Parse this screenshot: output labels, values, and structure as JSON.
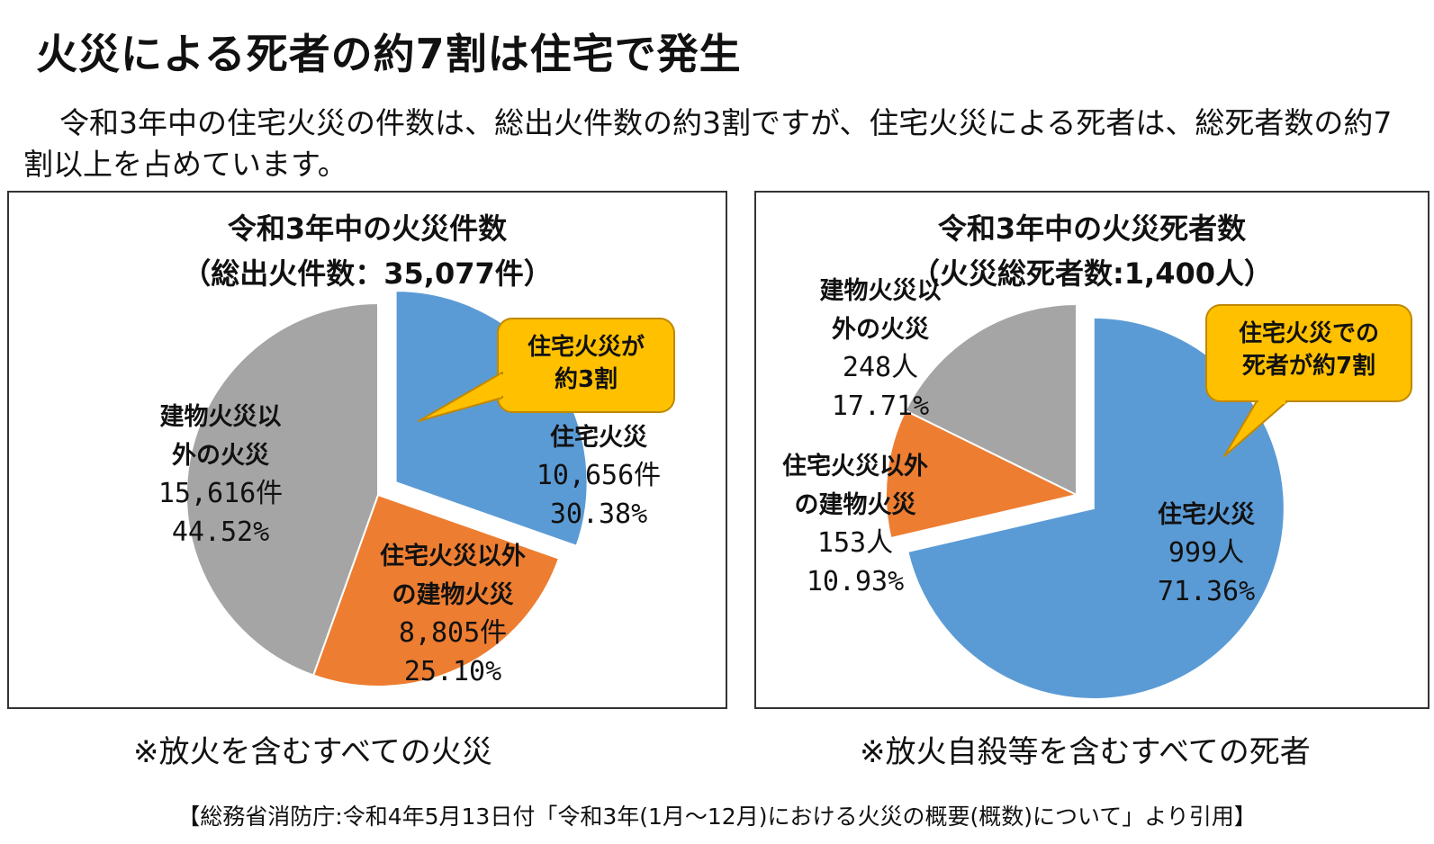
{
  "page": {
    "title": "火災による死者の約7割は住宅で発生",
    "lead": "令和3年中の住宅火災の件数は、総出火件数の約3割ですが、住宅火災による死者は、総死者数の約7割以上を占めています。",
    "source": "【総務省消防庁:令和4年5月13日付「令和3年(1月～12月)における火災の概要(概数)について」より引用】"
  },
  "colors": {
    "residential": "#5b9bd5",
    "non_residential_building": "#ed7d31",
    "other": "#a5a5a5",
    "callout_fill": "#ffc000",
    "callout_border": "#c08800"
  },
  "chart_data": [
    {
      "type": "pie",
      "title": "令和3年中の火災件数",
      "subtitle": "（総出火件数：35,077件）",
      "note": "※放火を含むすべての火災",
      "callout": [
        "住宅火災が",
        "約3割"
      ],
      "slices": [
        {
          "label": [
            "住宅火災"
          ],
          "value": 10656,
          "value_text": "10,656件",
          "percent": 30.38,
          "percent_text": "30.38%",
          "color": "#5b9bd5"
        },
        {
          "label": [
            "住宅火災以外",
            "の建物火災"
          ],
          "value": 8805,
          "value_text": "8,805件",
          "percent": 25.1,
          "percent_text": "25.10%",
          "color": "#ed7d31"
        },
        {
          "label": [
            "建物火災以",
            "外の火災"
          ],
          "value": 15616,
          "value_text": "15,616件",
          "percent": 44.52,
          "percent_text": "44.52%",
          "color": "#a5a5a5"
        }
      ]
    },
    {
      "type": "pie",
      "title": "令和3年中の火災死者数",
      "subtitle": "（火災総死者数:1,400人）",
      "note": "※放火自殺等を含むすべての死者",
      "callout": [
        "住宅火災での",
        "死者が約7割"
      ],
      "slices": [
        {
          "label": [
            "住宅火災"
          ],
          "value": 999,
          "value_text": "999人",
          "percent": 71.36,
          "percent_text": "71.36%",
          "color": "#5b9bd5"
        },
        {
          "label": [
            "住宅火災以外",
            "の建物火災"
          ],
          "value": 153,
          "value_text": "153人",
          "percent": 10.93,
          "percent_text": "10.93%",
          "color": "#ed7d31"
        },
        {
          "label": [
            "建物火災以",
            "外の火災"
          ],
          "value": 248,
          "value_text": "248人",
          "percent": 17.71,
          "percent_text": "17.71%",
          "color": "#a5a5a5"
        }
      ]
    }
  ]
}
